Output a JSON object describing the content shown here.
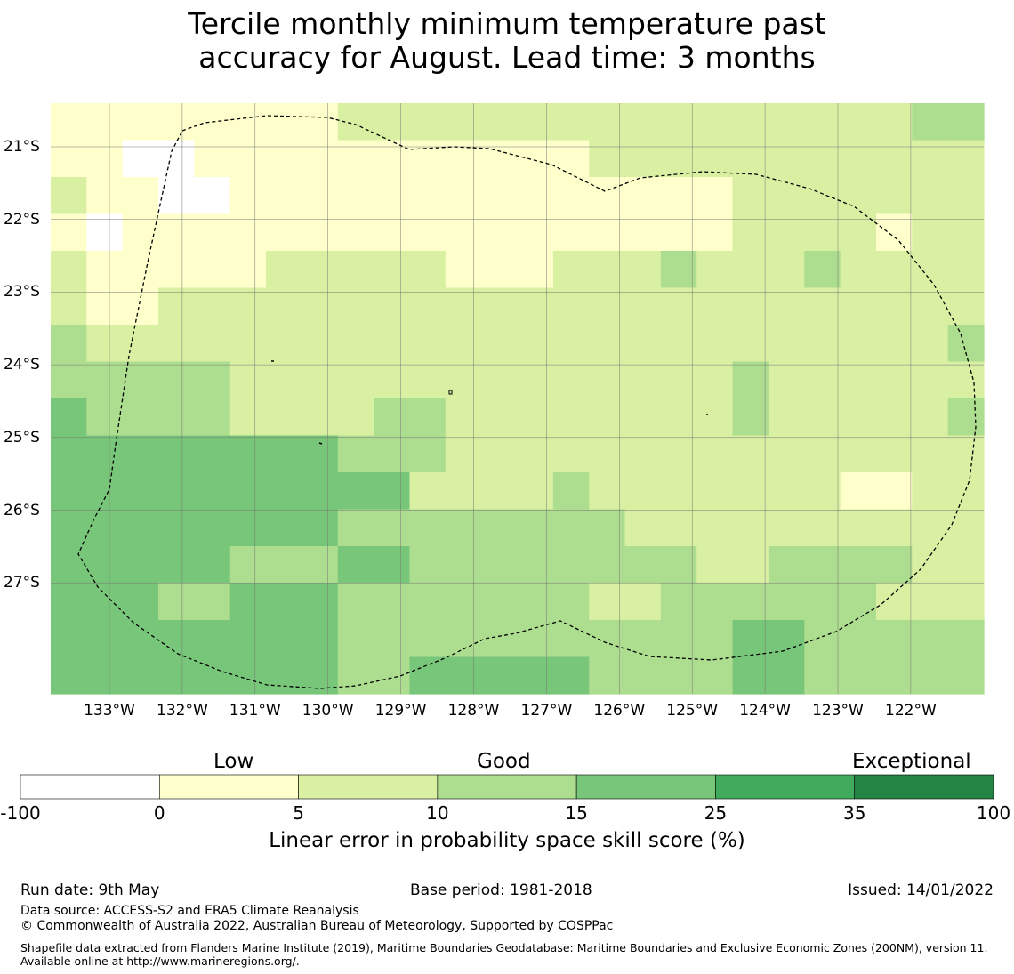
{
  "title": {
    "line1": "Tercile monthly minimum temperature past",
    "line2": "accuracy for August. Lead time: 3 months"
  },
  "map": {
    "lat_labels": [
      "21°S",
      "22°S",
      "23°S",
      "24°S",
      "25°S",
      "26°S",
      "27°S"
    ],
    "lon_labels": [
      "133°W",
      "132°W",
      "131°W",
      "130°W",
      "129°W",
      "128°W",
      "127°W",
      "126°W",
      "125°W",
      "124°W",
      "123°W",
      "122°W"
    ],
    "grid_rows": [
      "wywwwwwwwwwwwwwwwwwwwwwwwwwwwwwwwwwwwwwwwwwwwwwwwwwwwwwwwwwwwwwwwwwwwwwwwwwwwwwwwwwwwwwwwwwwwwwwwwwwwwwwwwwwwwwwwwwwwwwwwwwwwwwwwwwww",
      "y"
    ],
    "cells": [
      "xyywwwwyyyyyyyyywwwwwwwwwwww",
      "yyyrrryyyyyyyyyyyyyyyyyyyyyy",
      "lyyyyyyyyyyyyyyyyyyyyylllll",
      "ywlllllllllllllllllllllllll",
      "lyyyyyyllllllllllllllllllll"
    ],
    "cell_codes": {
      "w": "white (-100 to 0)",
      "y": "cream (0 to 5)",
      "l": "light (5 to 10)",
      "m": "medium (10 to 15)",
      "g": "green (15 to 25)"
    },
    "grid": [
      "YYYYYYYYLLLLLLLLLLLLLLLLMM",
      "YYWWYYYYYYYYYYYLLLLLLLLLLL",
      "LYYWWYYYYYYYYYYYYYYLLLLLLL",
      "YWYYYYYYYYYYYYYYYYYLLLLYLL",
      "LYYYYYLLLLLYYYLLLMLLLMLLLL",
      "LYYLLLLLLLLLLLLLLLLLLLLLLL",
      "MLLLLLLLLLLLLLLLLLLLLLLLLM",
      "MMMMMLLLLLLLLLLLLLLMLLLLLL",
      "GMMMMLLLLMMLLLLLLLLMLLLLLM",
      "GGGGGGGGMMMLLLLLLLLLLLLLLL",
      "GGGGGGGGGGLLLLMLLLLLLLYYLL",
      "GGGGGGGGMMMMMMMMLLLLLLLLLL",
      "GGGGGMMMGGMMMMMMMMLLMMMMLL",
      "GGGMMGGGMMMMMMMLLMMMMMMLLL",
      "GGGGGGGGMMMMMMMMMMMGGMMMMM",
      "GGGGGGGGMMGGGGGMMMMGGMMMMM"
    ],
    "colors": {
      "W": "#ffffff",
      "Y": "#ffffcc",
      "L": "#d9f0a3",
      "M": "#addd8e",
      "G": "#78c679"
    }
  },
  "colorbar": {
    "categories": [
      "Low",
      "Good",
      "Exceptional"
    ],
    "ticks": [
      "-100",
      "0",
      "5",
      "10",
      "15",
      "25",
      "35",
      "100"
    ],
    "colors": [
      "#ffffff",
      "#ffffcc",
      "#d9f0a3",
      "#addd8e",
      "#78c679",
      "#41ab5d",
      "#238443"
    ],
    "caption": "Linear error in probability space skill score (%)"
  },
  "footer": {
    "run_date": "Run date: 9th May",
    "base_period": "Base period: 1981-2018",
    "issued": "Issued: 14/01/2022",
    "data_source": "Data source: ACCESS-S2 and ERA5 Climate Reanalysis",
    "copyright": "© Commonwealth of Australia 2022, Australian Bureau of Meteorology, Supported by COSPPac",
    "shapefile": "Shapefile data extracted from Flanders Marine Institute (2019), Maritime Boundaries Geodatabase: Maritime Boundaries and Exclusive Economic Zones (200NM), version 11. Available online at http://www.marineregions.org/."
  }
}
